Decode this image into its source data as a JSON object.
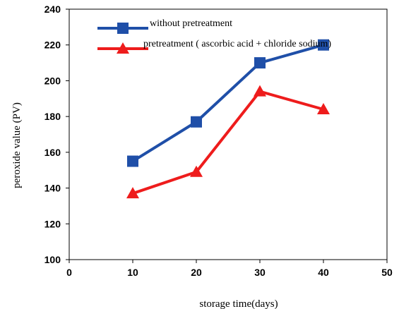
{
  "chart_data": {
    "type": "line",
    "title": "",
    "xlabel": "storage time(days)",
    "ylabel": "peroxide value (PV)",
    "xlim": [
      0,
      50
    ],
    "ylim": [
      100,
      240
    ],
    "x_ticks": [
      0,
      10,
      20,
      30,
      40,
      50
    ],
    "y_ticks": [
      100,
      120,
      140,
      160,
      180,
      200,
      220,
      240
    ],
    "grid": false,
    "legend": "top",
    "x": [
      10,
      20,
      30,
      40
    ],
    "series": [
      {
        "name": "without pretreatment",
        "values": [
          155,
          177,
          210,
          220
        ],
        "color": "#1f4fa8",
        "marker": "square"
      },
      {
        "name": "pretreatment ( ascorbic acid + chloride sodium)",
        "values": [
          137,
          149,
          194,
          184
        ],
        "color": "#ee1c1c",
        "marker": "triangle"
      }
    ]
  }
}
